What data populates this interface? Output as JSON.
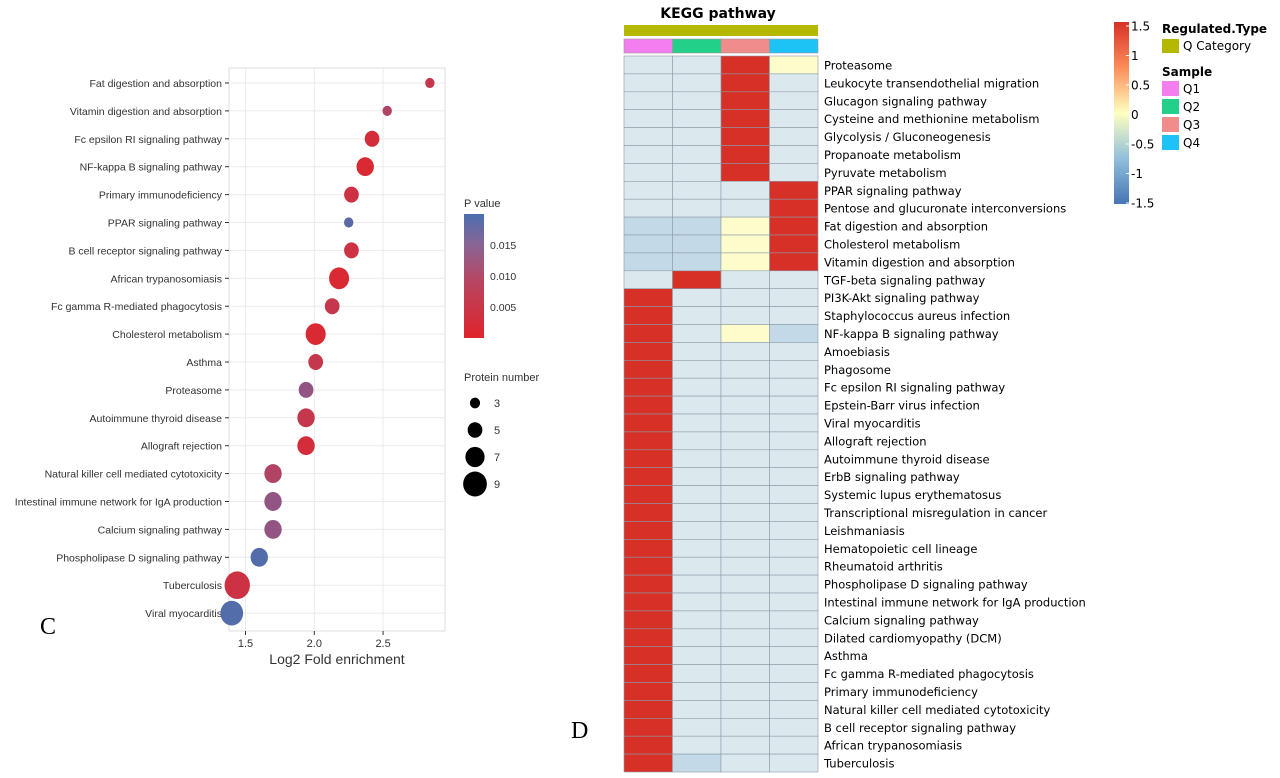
{
  "panels": {
    "left_letter": "C",
    "right_letter": "D"
  },
  "colors": {
    "p_low": "#d62728",
    "p_mid": "#8e5a8a",
    "p_high": "#4a6fb0",
    "heat_high": "#d73027",
    "heat_mid": "#ffffbf",
    "heat_low": "#4575b4",
    "heat_cell_neg": "#dbe9ef",
    "heat_cell_neg2": "#c4d9e7",
    "q_category": "#b5b800",
    "q1": "#f27ef0",
    "q2": "#22d08a",
    "q3": "#f08c8c",
    "q4": "#1ec3f5"
  },
  "chart_data": [
    {
      "type": "scatter",
      "xlabel": "Log2 Fold enrichment",
      "ylabel": "",
      "xlim": [
        1.38,
        2.95
      ],
      "x_ticks": [
        {
          "value": 1.5,
          "label": "1.5"
        },
        {
          "value": 2.0,
          "label": "2.0"
        },
        {
          "value": 2.5,
          "label": "2.5"
        }
      ],
      "grid": true,
      "legend_color": {
        "title": "P value",
        "range": [
          0,
          0.02
        ],
        "ticks": [
          {
            "value": 0.015,
            "label": "0.015"
          },
          {
            "value": 0.01,
            "label": "0.010"
          },
          {
            "value": 0.005,
            "label": "0.005"
          }
        ]
      },
      "legend_size": {
        "title": "Protein number",
        "entries": [
          {
            "value": 3,
            "label": "3"
          },
          {
            "value": 5,
            "label": "5"
          },
          {
            "value": 7,
            "label": "7"
          },
          {
            "value": 9,
            "label": "9"
          }
        ]
      },
      "points": [
        {
          "term": "Fat digestion and absorption",
          "x": 2.84,
          "count": 2,
          "p": 0.004
        },
        {
          "term": "Vitamin digestion and absorption",
          "x": 2.53,
          "count": 2,
          "p": 0.007
        },
        {
          "term": "Fc epsilon RI signaling pathway",
          "x": 2.42,
          "count": 4,
          "p": 0.002
        },
        {
          "term": "NF-kappa B signaling pathway",
          "x": 2.37,
          "count": 5,
          "p": 0.001
        },
        {
          "term": "Primary immunodeficiency",
          "x": 2.27,
          "count": 4,
          "p": 0.003
        },
        {
          "term": "PPAR signaling pathway",
          "x": 2.25,
          "count": 2,
          "p": 0.017
        },
        {
          "term": "B cell receptor signaling pathway",
          "x": 2.27,
          "count": 4,
          "p": 0.003
        },
        {
          "term": "African trypanosomiasis",
          "x": 2.18,
          "count": 6,
          "p": 0.001
        },
        {
          "term": "Fc gamma R-mediated phagocytosis",
          "x": 2.13,
          "count": 4,
          "p": 0.004
        },
        {
          "term": "Cholesterol metabolism",
          "x": 2.01,
          "count": 6,
          "p": 0.001
        },
        {
          "term": "Asthma",
          "x": 2.01,
          "count": 4,
          "p": 0.004
        },
        {
          "term": "Proteasome",
          "x": 1.94,
          "count": 4,
          "p": 0.011
        },
        {
          "term": "Autoimmune thyroid disease",
          "x": 1.94,
          "count": 5,
          "p": 0.004
        },
        {
          "term": "Allograft rejection",
          "x": 1.94,
          "count": 5,
          "p": 0.002
        },
        {
          "term": "Natural killer cell mediated cytotoxicity",
          "x": 1.7,
          "count": 5,
          "p": 0.007
        },
        {
          "term": "Intestinal immune network for IgA production",
          "x": 1.7,
          "count": 5,
          "p": 0.011
        },
        {
          "term": "Calcium signaling pathway",
          "x": 1.7,
          "count": 5,
          "p": 0.011
        },
        {
          "term": "Phospholipase D signaling pathway",
          "x": 1.6,
          "count": 5,
          "p": 0.018
        },
        {
          "term": "Tuberculosis",
          "x": 1.44,
          "count": 8,
          "p": 0.003
        },
        {
          "term": "Viral myocarditis",
          "x": 1.4,
          "count": 7,
          "p": 0.018
        }
      ]
    },
    {
      "type": "heatmap",
      "title": "KEGG pathway",
      "columns": [
        "Q1",
        "Q2",
        "Q3",
        "Q4"
      ],
      "colorbar": {
        "range": [
          -1.5,
          1.5
        ],
        "ticks": [
          {
            "value": 1.5,
            "label": "1.5"
          },
          {
            "value": 1,
            "label": "1"
          },
          {
            "value": 0.5,
            "label": "0.5"
          },
          {
            "value": 0,
            "label": "0"
          },
          {
            "value": -0.5,
            "label": "-0.5"
          },
          {
            "value": -1,
            "label": "-1"
          },
          {
            "value": -1.5,
            "label": "-1.5"
          }
        ]
      },
      "legend": {
        "regulated_title": "Regulated.Type",
        "regulated_items": [
          {
            "label": "Q Category",
            "color": "#b5b800"
          }
        ],
        "sample_title": "Sample",
        "sample_items": [
          {
            "label": "Q1",
            "color": "#f27ef0"
          },
          {
            "label": "Q2",
            "color": "#22d08a"
          },
          {
            "label": "Q3",
            "color": "#f08c8c"
          },
          {
            "label": "Q4",
            "color": "#1ec3f5"
          }
        ]
      },
      "rows": [
        {
          "label": "Proteasome",
          "values": [
            -0.5,
            -0.5,
            1.5,
            0.1
          ]
        },
        {
          "label": "Leukocyte transendothelial migration",
          "values": [
            -0.5,
            -0.5,
            1.5,
            -0.5
          ]
        },
        {
          "label": "Glucagon signaling pathway",
          "values": [
            -0.5,
            -0.5,
            1.5,
            -0.5
          ]
        },
        {
          "label": "Cysteine and methionine metabolism",
          "values": [
            -0.5,
            -0.5,
            1.5,
            -0.5
          ]
        },
        {
          "label": "Glycolysis / Gluconeogenesis",
          "values": [
            -0.5,
            -0.5,
            1.5,
            -0.5
          ]
        },
        {
          "label": "Propanoate metabolism",
          "values": [
            -0.5,
            -0.5,
            1.5,
            -0.5
          ]
        },
        {
          "label": "Pyruvate metabolism",
          "values": [
            -0.5,
            -0.5,
            1.5,
            -0.5
          ]
        },
        {
          "label": "PPAR signaling pathway",
          "values": [
            -0.5,
            -0.5,
            -0.5,
            1.5
          ]
        },
        {
          "label": "Pentose and glucuronate interconversions",
          "values": [
            -0.5,
            -0.5,
            -0.5,
            1.5
          ]
        },
        {
          "label": "Fat digestion and absorption",
          "values": [
            -0.8,
            -0.8,
            0.1,
            1.5
          ]
        },
        {
          "label": "Cholesterol metabolism",
          "values": [
            -0.8,
            -0.8,
            0.1,
            1.5
          ]
        },
        {
          "label": "Vitamin digestion and absorption",
          "values": [
            -0.8,
            -0.8,
            0.1,
            1.5
          ]
        },
        {
          "label": "TGF-beta signaling pathway",
          "values": [
            -0.5,
            1.5,
            -0.5,
            -0.5
          ]
        },
        {
          "label": "PI3K-Akt signaling pathway",
          "values": [
            1.5,
            -0.3,
            -0.6,
            -0.6
          ]
        },
        {
          "label": "Staphylococcus aureus infection",
          "values": [
            1.5,
            -0.3,
            -0.6,
            -0.6
          ]
        },
        {
          "label": "NF-kappa B signaling pathway",
          "values": [
            1.5,
            -0.5,
            -0.1,
            -0.7
          ]
        },
        {
          "label": "Amoebiasis",
          "values": [
            1.5,
            -0.5,
            -0.5,
            -0.5
          ]
        },
        {
          "label": "Phagosome",
          "values": [
            1.5,
            -0.5,
            -0.5,
            -0.5
          ]
        },
        {
          "label": "Fc epsilon RI signaling pathway",
          "values": [
            1.5,
            -0.5,
            -0.5,
            -0.5
          ]
        },
        {
          "label": "Epstein-Barr virus infection",
          "values": [
            1.5,
            -0.5,
            -0.5,
            -0.5
          ]
        },
        {
          "label": "Viral myocarditis",
          "values": [
            1.5,
            -0.5,
            -0.5,
            -0.5
          ]
        },
        {
          "label": "Allograft rejection",
          "values": [
            1.5,
            -0.5,
            -0.5,
            -0.5
          ]
        },
        {
          "label": "Autoimmune thyroid disease",
          "values": [
            1.5,
            -0.5,
            -0.5,
            -0.5
          ]
        },
        {
          "label": "ErbB signaling pathway",
          "values": [
            1.5,
            -0.5,
            -0.5,
            -0.5
          ]
        },
        {
          "label": "Systemic lupus erythematosus",
          "values": [
            1.5,
            -0.5,
            -0.5,
            -0.5
          ]
        },
        {
          "label": "Transcriptional misregulation in cancer",
          "values": [
            1.5,
            -0.5,
            -0.5,
            -0.5
          ]
        },
        {
          "label": "Leishmaniasis",
          "values": [
            1.5,
            -0.5,
            -0.5,
            -0.5
          ]
        },
        {
          "label": "Hematopoietic cell lineage",
          "values": [
            1.5,
            -0.5,
            -0.5,
            -0.5
          ]
        },
        {
          "label": "Rheumatoid arthritis",
          "values": [
            1.5,
            -0.5,
            -0.5,
            -0.5
          ]
        },
        {
          "label": "Phospholipase D signaling pathway",
          "values": [
            1.5,
            -0.5,
            -0.5,
            -0.5
          ]
        },
        {
          "label": "Intestinal immune network for IgA production",
          "values": [
            1.5,
            -0.5,
            -0.5,
            -0.5
          ]
        },
        {
          "label": "Calcium signaling pathway",
          "values": [
            1.5,
            -0.5,
            -0.5,
            -0.5
          ]
        },
        {
          "label": "Dilated cardiomyopathy (DCM)",
          "values": [
            1.5,
            -0.5,
            -0.5,
            -0.5
          ]
        },
        {
          "label": "Asthma",
          "values": [
            1.5,
            -0.5,
            -0.5,
            -0.5
          ]
        },
        {
          "label": "Fc gamma R-mediated phagocytosis",
          "values": [
            1.5,
            -0.5,
            -0.5,
            -0.5
          ]
        },
        {
          "label": "Primary immunodeficiency",
          "values": [
            1.5,
            -0.5,
            -0.5,
            -0.5
          ]
        },
        {
          "label": "Natural killer cell mediated cytotoxicity",
          "values": [
            1.5,
            -0.5,
            -0.5,
            -0.5
          ]
        },
        {
          "label": "B cell receptor signaling pathway",
          "values": [
            1.5,
            -0.5,
            -0.5,
            -0.5
          ]
        },
        {
          "label": "African trypanosomiasis",
          "values": [
            1.5,
            -0.5,
            -0.5,
            -0.5
          ]
        },
        {
          "label": "Tuberculosis",
          "values": [
            1.5,
            -0.7,
            -0.5,
            -0.5
          ]
        }
      ]
    }
  ]
}
